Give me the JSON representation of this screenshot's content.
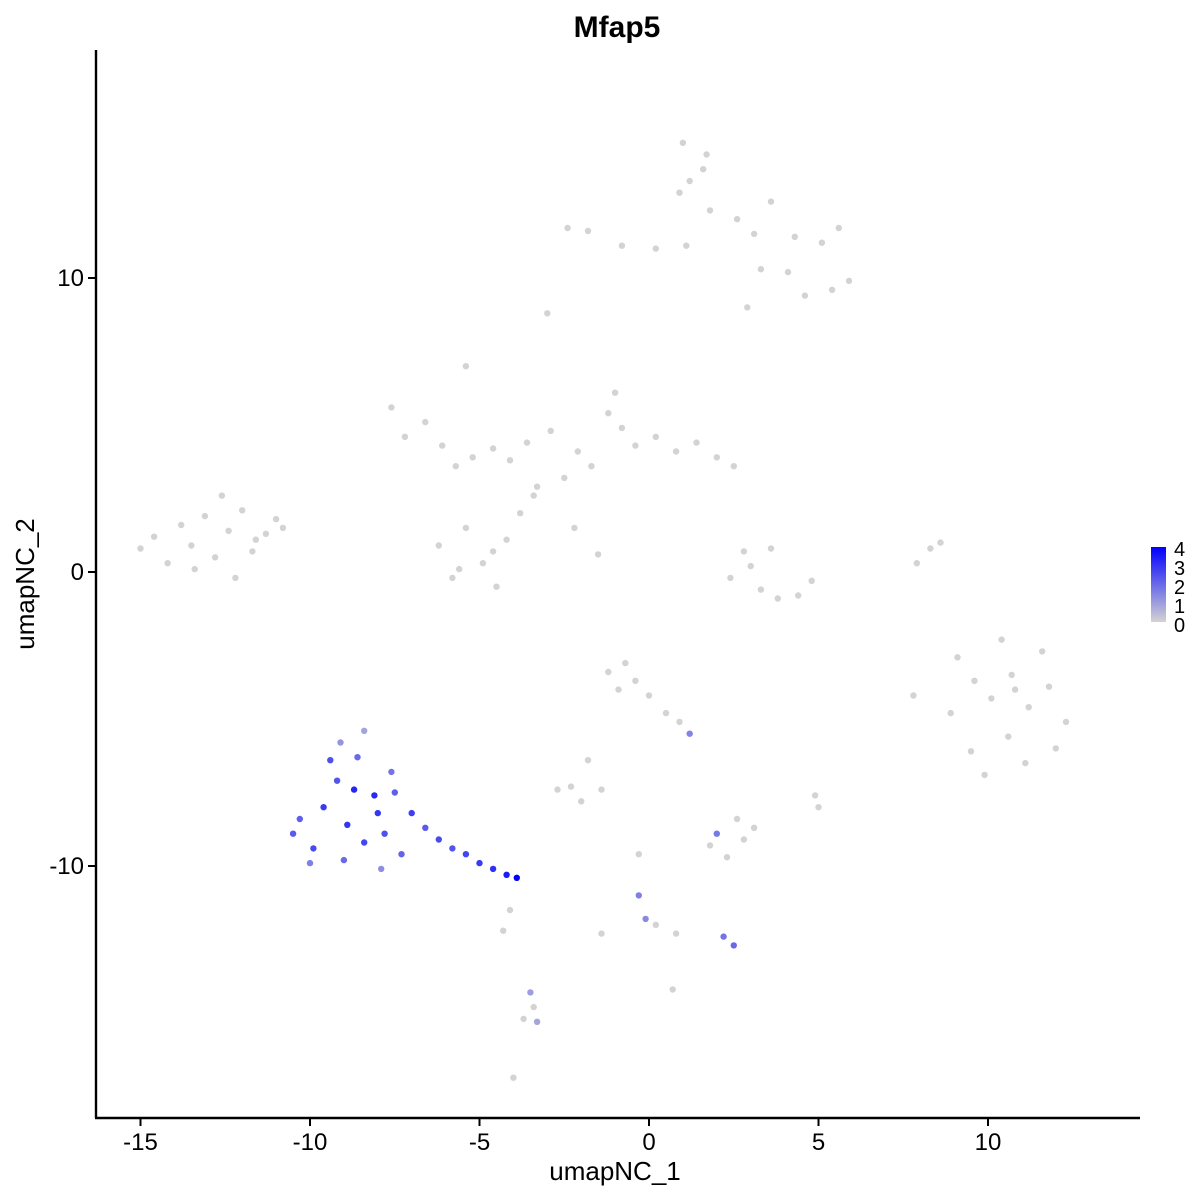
{
  "chart_data": {
    "type": "scatter",
    "title": "Mfap5",
    "xlabel": "umapNC_1",
    "ylabel": "umapNC_2",
    "xlim": [
      -16.5,
      14.5
    ],
    "ylim": [
      -18.5,
      18
    ],
    "xticks": [
      -15,
      -10,
      -5,
      0,
      5,
      10
    ],
    "xtick_labels": [
      "-15",
      "-10",
      "-5",
      "0",
      "5",
      "10"
    ],
    "yticks": [
      -10,
      0,
      10
    ],
    "ytick_labels": [
      "-10",
      "0",
      "10"
    ],
    "grid": false,
    "legend": {
      "placement": "right",
      "labels": [
        "4",
        "3",
        "2",
        "1",
        "0"
      ],
      "min": 0,
      "max": 4,
      "color_low": "#d3d3d3",
      "color_high": "#0000ff"
    },
    "series": [
      {
        "points": [
          [
            -15,
            0.8,
            0
          ],
          [
            -14.6,
            1.2,
            0
          ],
          [
            -14.2,
            0.3,
            0
          ],
          [
            -13.8,
            1.6,
            0
          ],
          [
            -13.5,
            0.9,
            0
          ],
          [
            -13.1,
            1.9,
            0
          ],
          [
            -12.8,
            0.5,
            0
          ],
          [
            -12.4,
            1.4,
            0
          ],
          [
            -12,
            2.1,
            0
          ],
          [
            -11.7,
            0.7,
            0
          ],
          [
            -11.3,
            1.3,
            0
          ],
          [
            -11,
            1.8,
            0
          ],
          [
            -12.6,
            2.6,
            0
          ],
          [
            -12.2,
            -0.2,
            0
          ],
          [
            -13.4,
            0.1,
            0
          ],
          [
            -11.6,
            1.1,
            0
          ],
          [
            -10.8,
            1.5,
            0
          ],
          [
            -7.6,
            5.6,
            0
          ],
          [
            -7.2,
            4.6,
            0
          ],
          [
            -6.6,
            5.1,
            0
          ],
          [
            -6.1,
            4.3,
            0
          ],
          [
            -5.7,
            3.6,
            0
          ],
          [
            -5.2,
            3.9,
            0
          ],
          [
            -5.4,
            7.0,
            0
          ],
          [
            -4.6,
            4.2,
            0
          ],
          [
            -4.1,
            3.8,
            0
          ],
          [
            -3.6,
            4.4,
            0
          ],
          [
            -3.3,
            2.9,
            0
          ],
          [
            -2.9,
            4.8,
            0
          ],
          [
            -2.5,
            3.2,
            0
          ],
          [
            -2.1,
            4.1,
            0
          ],
          [
            -1.7,
            3.6,
            0
          ],
          [
            -1.2,
            5.4,
            0
          ],
          [
            -0.8,
            4.9,
            0
          ],
          [
            -0.4,
            4.3,
            0
          ],
          [
            0.2,
            4.6,
            0
          ],
          [
            0.8,
            4.1,
            0
          ],
          [
            1.4,
            4.4,
            0
          ],
          [
            2.0,
            3.9,
            0
          ],
          [
            2.5,
            3.6,
            0
          ],
          [
            -1.0,
            6.1,
            0
          ],
          [
            -6.2,
            0.9,
            0
          ],
          [
            -5.8,
            -0.2,
            0
          ],
          [
            -5.4,
            1.5,
            0
          ],
          [
            -4.9,
            0.3,
            0
          ],
          [
            -4.5,
            -0.5,
            0
          ],
          [
            -4.2,
            1.1,
            0
          ],
          [
            -3.8,
            2.0,
            0
          ],
          [
            -4.6,
            0.7,
            0
          ],
          [
            -5.6,
            0.1,
            0
          ],
          [
            -3.4,
            2.6,
            0
          ],
          [
            -2.2,
            1.5,
            0
          ],
          [
            -1.5,
            0.6,
            0
          ],
          [
            -2.4,
            11.7,
            0
          ],
          [
            -1.8,
            11.6,
            0
          ],
          [
            -0.8,
            11.1,
            0
          ],
          [
            0.2,
            11.0,
            0
          ],
          [
            1.1,
            11.1,
            0
          ],
          [
            1.6,
            13.7,
            0
          ],
          [
            1.0,
            14.6,
            0
          ],
          [
            0.9,
            12.9,
            0
          ],
          [
            1.8,
            12.3,
            0
          ],
          [
            2.6,
            12.0,
            0
          ],
          [
            3.1,
            11.5,
            0
          ],
          [
            3.6,
            12.6,
            0
          ],
          [
            4.3,
            11.4,
            0
          ],
          [
            5.1,
            11.2,
            0
          ],
          [
            5.6,
            11.7,
            0
          ],
          [
            4.1,
            10.2,
            0
          ],
          [
            4.6,
            9.4,
            0
          ],
          [
            5.4,
            9.6,
            0
          ],
          [
            5.9,
            9.9,
            0
          ],
          [
            3.3,
            10.3,
            0
          ],
          [
            2.9,
            9.0,
            0
          ],
          [
            1.7,
            14.2,
            0
          ],
          [
            1.2,
            13.3,
            0
          ],
          [
            -3.0,
            8.8,
            0
          ],
          [
            2.8,
            0.7,
            0
          ],
          [
            3.0,
            0.2,
            0
          ],
          [
            3.3,
            -0.6,
            0
          ],
          [
            3.8,
            -0.9,
            0
          ],
          [
            4.4,
            -0.8,
            0
          ],
          [
            4.8,
            -0.3,
            0
          ],
          [
            2.4,
            -0.2,
            0
          ],
          [
            3.6,
            0.8,
            0
          ],
          [
            7.9,
            0.3,
            0
          ],
          [
            8.3,
            0.8,
            0
          ],
          [
            8.6,
            1.0,
            0
          ],
          [
            9.1,
            -2.9,
            0
          ],
          [
            9.6,
            -3.7,
            0
          ],
          [
            10.1,
            -4.3,
            0
          ],
          [
            10.7,
            -3.5,
            0
          ],
          [
            11.2,
            -4.6,
            0
          ],
          [
            11.8,
            -3.9,
            0
          ],
          [
            12.3,
            -5.1,
            0
          ],
          [
            10.6,
            -5.6,
            0
          ],
          [
            9.5,
            -6.1,
            0
          ],
          [
            11.1,
            -6.5,
            0
          ],
          [
            12.0,
            -6.0,
            0
          ],
          [
            8.9,
            -4.8,
            0
          ],
          [
            10.4,
            -2.3,
            0
          ],
          [
            11.6,
            -2.7,
            0
          ],
          [
            9.9,
            -6.9,
            0
          ],
          [
            10.8,
            -4.0,
            0
          ],
          [
            7.8,
            -4.2,
            0
          ],
          [
            -1.2,
            -3.4,
            0
          ],
          [
            -0.9,
            -4.0,
            0
          ],
          [
            -0.4,
            -3.7,
            0
          ],
          [
            0.0,
            -4.2,
            0
          ],
          [
            0.5,
            -4.8,
            0
          ],
          [
            0.9,
            -5.1,
            0
          ],
          [
            -0.7,
            -3.1,
            0
          ],
          [
            -1.8,
            -6.4,
            0
          ],
          [
            -2.3,
            -7.3,
            0
          ],
          [
            -2.0,
            -7.8,
            0
          ],
          [
            -2.7,
            -7.4,
            0
          ],
          [
            -1.4,
            -7.4,
            0
          ],
          [
            1.8,
            -9.3,
            0
          ],
          [
            2.3,
            -9.7,
            0
          ],
          [
            2.8,
            -9.1,
            0
          ],
          [
            3.1,
            -8.7,
            0
          ],
          [
            2.6,
            -8.4,
            0
          ],
          [
            5.0,
            -8.0,
            0
          ],
          [
            4.9,
            -7.6,
            0
          ],
          [
            -0.3,
            -9.6,
            0
          ],
          [
            0.8,
            -12.3,
            0
          ],
          [
            0.2,
            -12.0,
            0
          ],
          [
            -1.4,
            -12.3,
            0
          ],
          [
            -4.0,
            -17.2,
            0
          ],
          [
            0.7,
            -14.2,
            0
          ],
          [
            -4.1,
            -11.5,
            0
          ],
          [
            -4.3,
            -12.2,
            0
          ],
          [
            -3.7,
            -15.2,
            0
          ],
          [
            -3.4,
            -14.8,
            0
          ]
        ]
      },
      {
        "points": [
          [
            -10.3,
            -8.4,
            2.2
          ],
          [
            -9.9,
            -9.4,
            2.6
          ],
          [
            -9.6,
            -8.0,
            2.9
          ],
          [
            -9.2,
            -7.1,
            2.4
          ],
          [
            -8.9,
            -8.6,
            3.0
          ],
          [
            -8.6,
            -6.3,
            2.0
          ],
          [
            -8.4,
            -9.2,
            2.7
          ],
          [
            -8.1,
            -7.6,
            3.2
          ],
          [
            -7.8,
            -8.9,
            2.5
          ],
          [
            -7.6,
            -6.8,
            1.8
          ],
          [
            -7.3,
            -9.6,
            2.1
          ],
          [
            -7.0,
            -8.2,
            2.8
          ],
          [
            -6.6,
            -8.7,
            2.3
          ],
          [
            -6.2,
            -9.1,
            2.6
          ],
          [
            -5.8,
            -9.4,
            2.4
          ],
          [
            -5.4,
            -9.6,
            2.7
          ],
          [
            -5.0,
            -9.9,
            2.9
          ],
          [
            -4.6,
            -10.1,
            3.1
          ],
          [
            -4.2,
            -10.3,
            3.5
          ],
          [
            -3.9,
            -10.4,
            4.0
          ],
          [
            -9.1,
            -5.8,
            1.2
          ],
          [
            -8.4,
            -5.4,
            0.9
          ],
          [
            -10.0,
            -9.9,
            1.6
          ],
          [
            -7.9,
            -10.1,
            1.3
          ],
          [
            -9.4,
            -6.4,
            2.5
          ],
          [
            -8.7,
            -7.4,
            3.3
          ],
          [
            -8.0,
            -8.2,
            3.0
          ],
          [
            -7.5,
            -7.5,
            2.2
          ],
          [
            -9.0,
            -9.8,
            2.0
          ],
          [
            -10.5,
            -8.9,
            2.3
          ],
          [
            -0.3,
            -11.0,
            1.6
          ],
          [
            -0.1,
            -11.8,
            1.4
          ],
          [
            2.2,
            -12.4,
            1.8
          ],
          [
            2.5,
            -12.7,
            2.0
          ],
          [
            1.2,
            -5.5,
            1.5
          ],
          [
            2.0,
            -8.9,
            1.7
          ],
          [
            -3.5,
            -14.3,
            1.0
          ],
          [
            -3.3,
            -15.3,
            0.9
          ]
        ]
      }
    ]
  }
}
